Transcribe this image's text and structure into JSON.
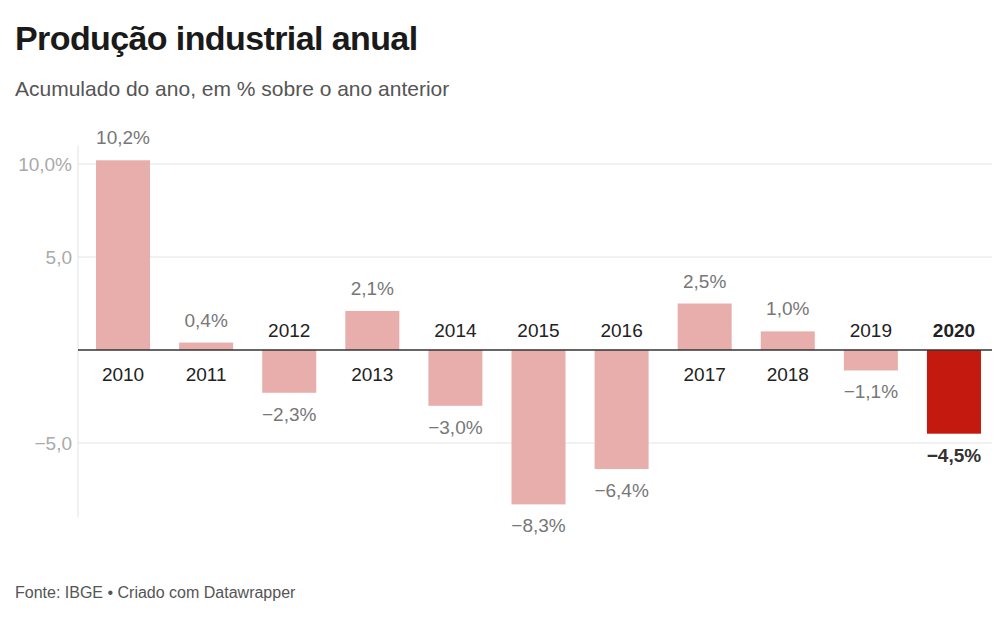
{
  "chart_data": {
    "type": "bar",
    "title": "Produção industrial anual",
    "subtitle": "Acumulado do ano, em % sobre o ano anterior",
    "source": "Fonte: IBGE • Criado com Datawrapper",
    "categories": [
      "2010",
      "2011",
      "2012",
      "2013",
      "2014",
      "2015",
      "2016",
      "2017",
      "2018",
      "2019",
      "2020"
    ],
    "values": [
      10.2,
      0.4,
      -2.3,
      2.1,
      -3.0,
      -8.3,
      -6.4,
      2.5,
      1.0,
      -1.1,
      -4.5
    ],
    "value_labels": [
      "10,2%",
      "0,4%",
      "−2,3%",
      "2,1%",
      "−3,0%",
      "−8,3%",
      "−6,4%",
      "2,5%",
      "1,0%",
      "−1,1%",
      "−4,5%"
    ],
    "colors": [
      "#e8aeab",
      "#e8aeab",
      "#e8aeab",
      "#e8aeab",
      "#e8aeab",
      "#e8aeab",
      "#e8aeab",
      "#e8aeab",
      "#e8aeab",
      "#e8aeab",
      "#c4190e"
    ],
    "ylim": [
      -9,
      11
    ],
    "yticks": [
      {
        "value": -5,
        "label": "−5,0"
      },
      {
        "value": 5,
        "label": "5,0"
      },
      {
        "value": 10,
        "label": "10,0%"
      }
    ],
    "grid": true,
    "data_labels": true
  }
}
